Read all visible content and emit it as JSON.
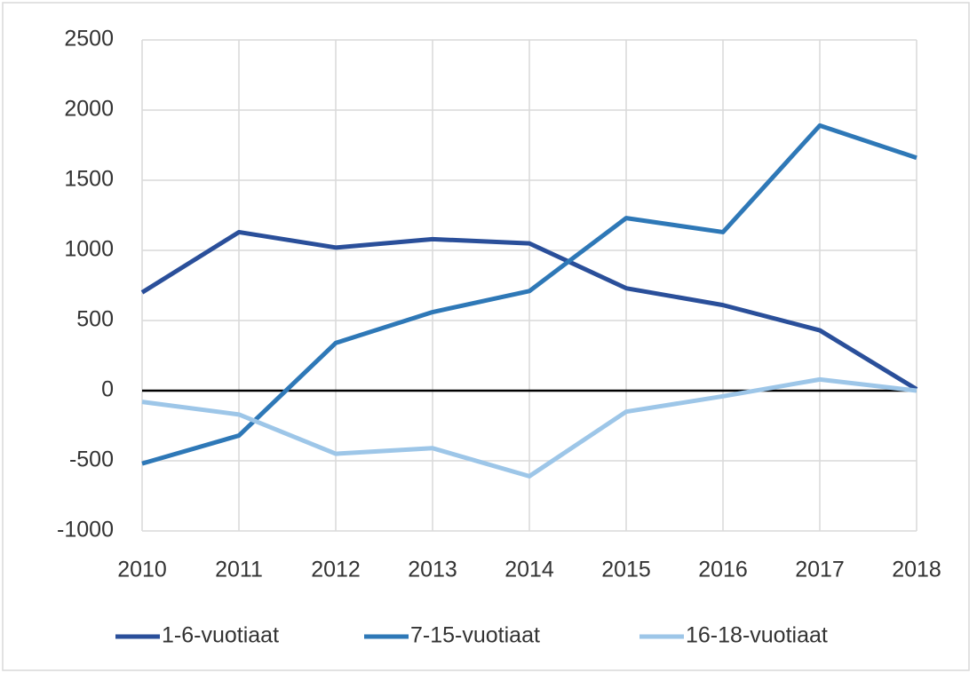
{
  "chart_data": {
    "type": "line",
    "categories": [
      "2010",
      "2011",
      "2012",
      "2013",
      "2014",
      "2015",
      "2016",
      "2017",
      "2018"
    ],
    "series": [
      {
        "name": "1-6-vuotiaat",
        "color": "#2a4f9a",
        "values": [
          700,
          1130,
          1020,
          1080,
          1050,
          730,
          610,
          430,
          10
        ]
      },
      {
        "name": "7-15-vuotiaat",
        "color": "#2e78b7",
        "values": [
          -520,
          -320,
          340,
          560,
          710,
          1230,
          1130,
          1890,
          1660
        ]
      },
      {
        "name": "16-18-vuotiaat",
        "color": "#9dc6e8",
        "values": [
          -80,
          -170,
          -450,
          -410,
          -610,
          -150,
          -40,
          80,
          0
        ]
      }
    ],
    "ylim": [
      -1000,
      2500
    ],
    "yticks": [
      -1000,
      -500,
      0,
      500,
      1000,
      1500,
      2000,
      2500
    ],
    "grid": true,
    "legend": "bottom"
  }
}
